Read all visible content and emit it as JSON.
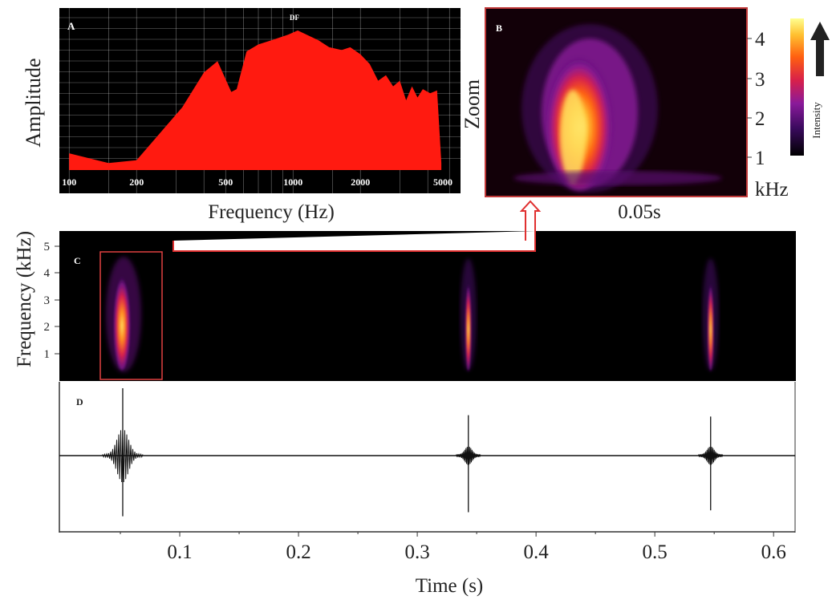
{
  "chart_data": [
    {
      "panel": "A",
      "type": "area",
      "xlabel": "Frequency (Hz)",
      "ylabel": "Amplitude",
      "x_scale": "log",
      "x_ticks": [
        "100",
        "200",
        "500",
        "1000",
        "2000",
        "5000"
      ],
      "annotation": "DF",
      "grid": true,
      "series_color": "#ff1a10",
      "x": [
        100,
        150,
        200,
        250,
        320,
        400,
        460,
        530,
        560,
        620,
        700,
        800,
        950,
        1050,
        1150,
        1300,
        1450,
        1650,
        1800,
        2000,
        2200,
        2400,
        2600,
        2800,
        3000,
        3200,
        3400,
        3600,
        3800,
        4100,
        4400,
        4600
      ],
      "y": [
        0.12,
        0.05,
        0.07,
        0.25,
        0.45,
        0.7,
        0.78,
        0.56,
        0.58,
        0.85,
        0.9,
        0.93,
        0.97,
        1.0,
        0.97,
        0.93,
        0.88,
        0.86,
        0.88,
        0.83,
        0.76,
        0.64,
        0.68,
        0.6,
        0.64,
        0.5,
        0.6,
        0.52,
        0.58,
        0.55,
        0.57,
        0.05
      ]
    },
    {
      "panel": "B",
      "type": "heatmap",
      "ylabel": "Zoom",
      "xlabel": "0.05s",
      "y_unit": "kHz",
      "y_ticks": [
        "1",
        "2",
        "3",
        "4"
      ],
      "colorbar_label": "Intensity",
      "colors": [
        "#000000",
        "#3a0a5e",
        "#8a1a9a",
        "#d8204a",
        "#ff6010",
        "#ffc030",
        "#ffff90"
      ]
    },
    {
      "panel": "C",
      "type": "heatmap",
      "ylabel": "Frequency (kHz)",
      "y_ticks": [
        "1",
        "2",
        "3",
        "4",
        "5"
      ],
      "calls_time_s": [
        0.05,
        0.343,
        0.547
      ],
      "highlight_box_color": "#e04040"
    },
    {
      "panel": "D",
      "type": "line",
      "xlabel": "Time (s)",
      "x_ticks": [
        "0.1",
        "0.2",
        "0.3",
        "0.4",
        "0.5",
        "0.6"
      ],
      "xlim": [
        0,
        0.61
      ],
      "pulse_times_s": [
        0.052,
        0.343,
        0.547
      ],
      "pulse_amplitudes": [
        1.0,
        0.6,
        0.58
      ]
    }
  ]
}
